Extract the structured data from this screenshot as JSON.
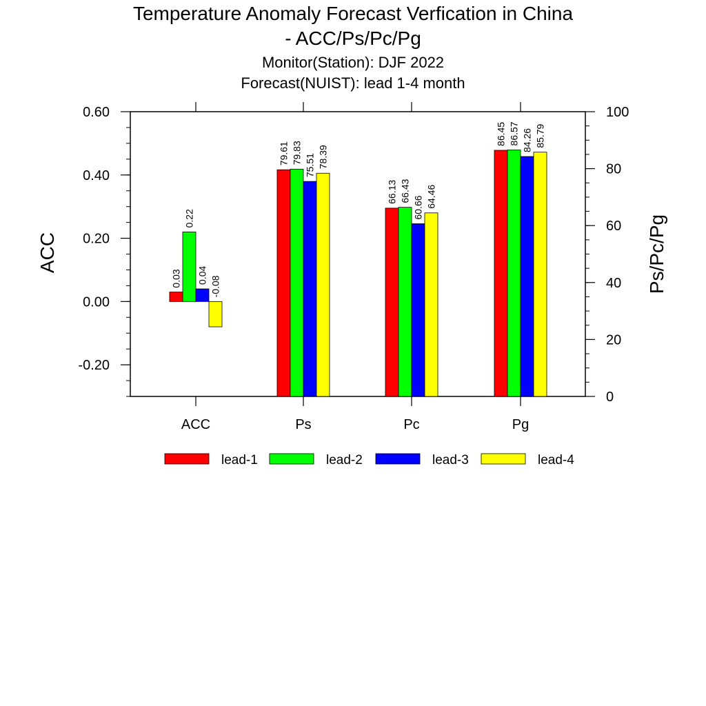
{
  "chart_data": {
    "type": "bar",
    "title": "Temperature Anomaly Forecast Verfication in China",
    "title_line2": "- ACC/Ps/Pc/Pg",
    "subtitle_1": "Monitor(Station): DJF 2022",
    "subtitle_2": "Forecast(NUIST): lead 1-4 month",
    "ylabel_left": "ACC",
    "ylabel_right": "Ps/Pc/Pg",
    "categories": [
      "ACC",
      "Ps",
      "Pc",
      "Pg"
    ],
    "left_axis": {
      "range": [
        -0.3,
        0.6
      ],
      "ticks": [
        "0.60",
        "0.40",
        "0.20",
        "0.00",
        "-0.20"
      ],
      "tick_values": [
        0.6,
        0.4,
        0.2,
        0.0,
        -0.2
      ]
    },
    "right_axis": {
      "range": [
        0,
        100
      ],
      "ticks": [
        "100",
        "80",
        "60",
        "40",
        "20",
        "0"
      ],
      "tick_values": [
        100,
        80,
        60,
        40,
        20,
        0
      ]
    },
    "series": [
      {
        "name": "lead-1",
        "color": "#ff0000",
        "values": [
          0.03,
          79.61,
          66.13,
          86.45
        ],
        "labels": [
          "0.03",
          "79.61",
          "66.13",
          "86.45"
        ]
      },
      {
        "name": "lead-2",
        "color": "#00ff00",
        "values": [
          0.22,
          79.83,
          66.43,
          86.57
        ],
        "labels": [
          "0.22",
          "79.83",
          "66.43",
          "86.57"
        ]
      },
      {
        "name": "lead-3",
        "color": "#0000ff",
        "values": [
          0.04,
          75.51,
          60.66,
          84.26
        ],
        "labels": [
          "0.04",
          "75.51",
          "60.66",
          "84.26"
        ]
      },
      {
        "name": "lead-4",
        "color": "#ffff00",
        "values": [
          -0.08,
          78.39,
          64.46,
          85.79
        ],
        "labels": [
          "-0.08",
          "78.39",
          "64.46",
          "85.79"
        ]
      }
    ],
    "legend_position": "bottom",
    "grid": false
  }
}
